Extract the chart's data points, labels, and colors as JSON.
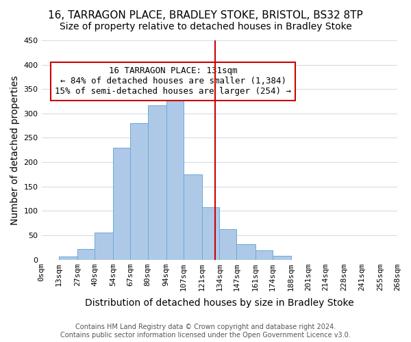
{
  "title": "16, TARRAGON PLACE, BRADLEY STOKE, BRISTOL, BS32 8TP",
  "subtitle": "Size of property relative to detached houses in Bradley Stoke",
  "xlabel": "Distribution of detached houses by size in Bradley Stoke",
  "ylabel": "Number of detached properties",
  "bin_labels": [
    "0sqm",
    "13sqm",
    "27sqm",
    "40sqm",
    "54sqm",
    "67sqm",
    "80sqm",
    "94sqm",
    "107sqm",
    "121sqm",
    "134sqm",
    "147sqm",
    "161sqm",
    "174sqm",
    "188sqm",
    "201sqm",
    "214sqm",
    "228sqm",
    "241sqm",
    "255sqm",
    "268sqm"
  ],
  "bin_edges": [
    0,
    13,
    27,
    40,
    54,
    67,
    80,
    94,
    107,
    121,
    134,
    147,
    161,
    174,
    188,
    201,
    214,
    228,
    241,
    255,
    268
  ],
  "bar_heights": [
    0,
    6,
    22,
    55,
    230,
    280,
    316,
    338,
    175,
    108,
    63,
    32,
    19,
    8,
    0,
    0,
    0,
    0,
    0,
    0
  ],
  "bar_color": "#aec9e8",
  "bar_edge_color": "#6aaad4",
  "vline_x": 131,
  "vline_color": "#cc0000",
  "annotation_text": "16 TARRAGON PLACE: 131sqm\n← 84% of detached houses are smaller (1,384)\n15% of semi-detached houses are larger (254) →",
  "annotation_box_color": "#cc0000",
  "annotation_box_fill": "#ffffff",
  "ylim": [
    0,
    450
  ],
  "grid_color": "#d0dde8",
  "background_color": "#ffffff",
  "footer_text": "Contains HM Land Registry data © Crown copyright and database right 2024.\nContains public sector information licensed under the Open Government Licence v3.0.",
  "title_fontsize": 11,
  "subtitle_fontsize": 10,
  "axis_label_fontsize": 10,
  "tick_fontsize": 8,
  "annotation_fontsize": 9,
  "footer_fontsize": 7
}
